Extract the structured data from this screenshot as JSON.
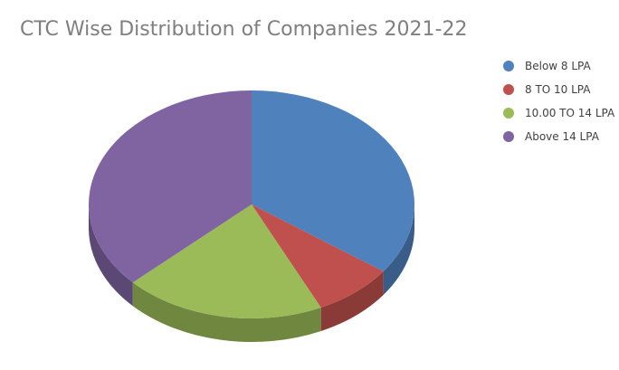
{
  "chart_data": {
    "type": "pie",
    "title": "CTC Wise Distribution of Companies 2021-22",
    "categories": [
      "Below 8 LPA",
      "8 TO 10 LPA",
      "10.00 TO 14 LPA",
      "Above 14 LPA"
    ],
    "values": [
      35,
      8,
      20,
      37
    ],
    "colors": [
      "#4f81bd",
      "#c0504d",
      "#9bbb59",
      "#8064a2"
    ],
    "legend": "right",
    "style": "3d"
  }
}
